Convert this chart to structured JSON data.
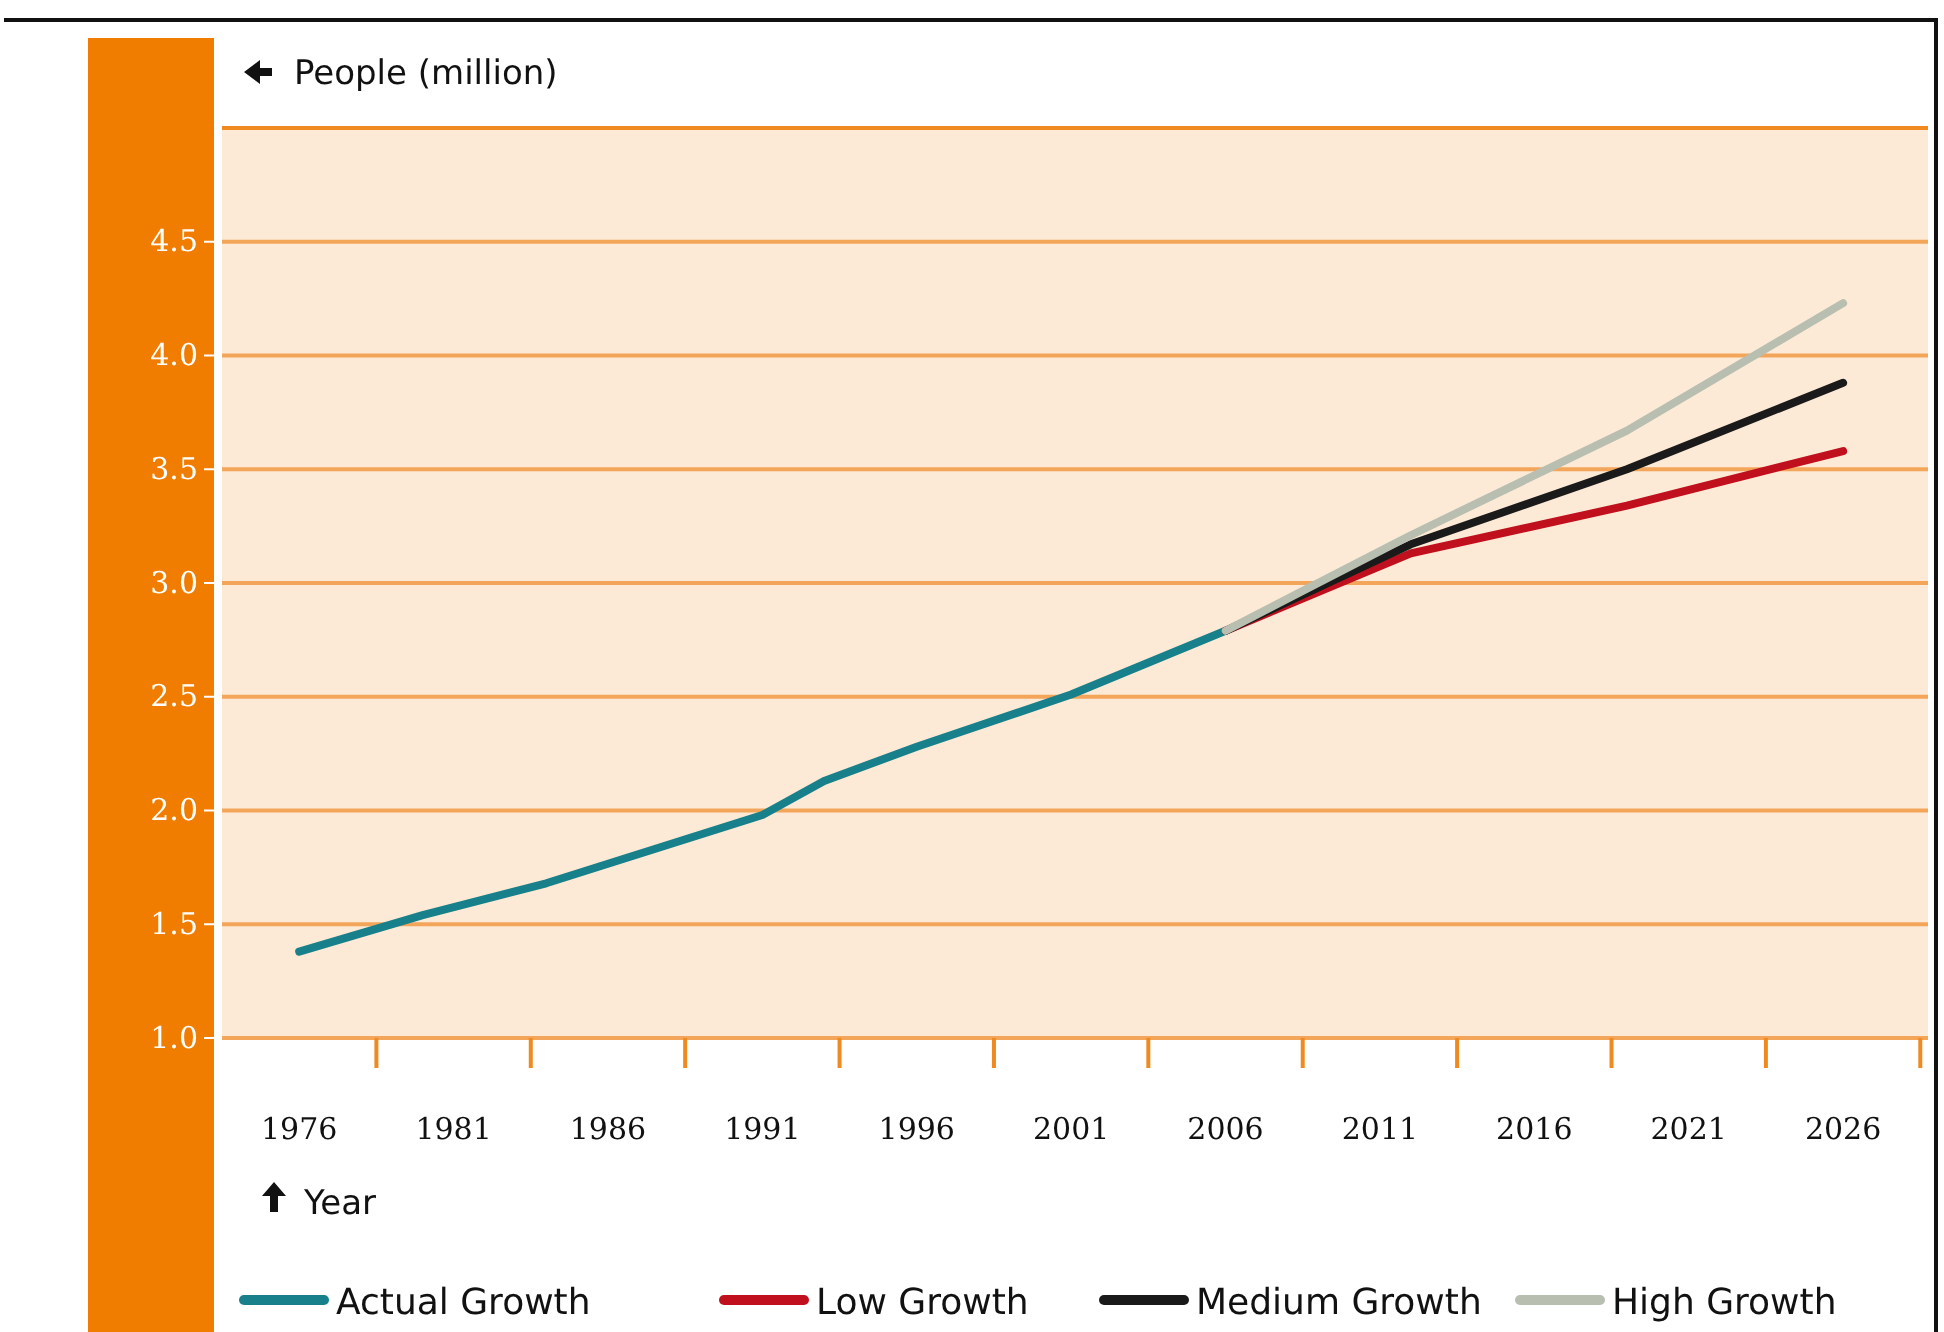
{
  "chart_data": {
    "type": "line",
    "ylabel": "People (million)",
    "xlabel": "Year",
    "xlim": [
      1973.5,
      2028.75
    ],
    "xticks": [
      {
        "value": 1978.5,
        "label": null
      },
      {
        "value": 1983.5,
        "label": null
      },
      {
        "value": 1988.5,
        "label": null
      },
      {
        "value": 1993.5,
        "label": null
      },
      {
        "value": 1998.5,
        "label": null
      },
      {
        "value": 2003.5,
        "label": null
      },
      {
        "value": 2008.5,
        "label": null
      },
      {
        "value": 2013.5,
        "label": null
      },
      {
        "value": 2018.5,
        "label": null
      },
      {
        "value": 2023.5,
        "label": null
      },
      {
        "value": 2028.5,
        "label": null
      },
      1976,
      1981,
      1986,
      1991,
      1996,
      2001,
      2006,
      2011,
      2016,
      2021,
      2026
    ],
    "ylim": [
      1.0,
      5.0
    ],
    "yticks": [
      {
        "value": 1.0,
        "label": "1.0"
      },
      1.5,
      {
        "value": 2.0,
        "label": "2.0"
      },
      2.5,
      {
        "value": 3.0,
        "label": "3.0"
      },
      3.5,
      {
        "value": 4.0,
        "label": "4.0"
      },
      4.5
    ],
    "grid": "y",
    "legend": "bottom",
    "line_style": "solid",
    "series": [
      {
        "name": "Actual Growth",
        "color": "#17808a",
        "x": [
          1976,
          1980,
          1984,
          1991,
          1993,
          1996,
          2001,
          2006
        ],
        "values": [
          1.38,
          1.54,
          1.68,
          1.98,
          2.13,
          2.28,
          2.51,
          2.79
        ]
      },
      {
        "name": "Low Growth",
        "color": "#c0101e",
        "x": [
          2006,
          2012,
          2019,
          2026
        ],
        "values": [
          2.79,
          3.13,
          3.34,
          3.58
        ]
      },
      {
        "name": "Medium Growth",
        "color": "#1a1a1a",
        "x": [
          2006,
          2012,
          2019,
          2026
        ],
        "values": [
          2.79,
          3.17,
          3.5,
          3.88
        ]
      },
      {
        "name": "High Growth",
        "color": "#b8bfb0",
        "x": [
          2006,
          2012,
          2019,
          2026
        ],
        "values": [
          2.79,
          3.21,
          3.67,
          4.23
        ]
      }
    ]
  }
}
